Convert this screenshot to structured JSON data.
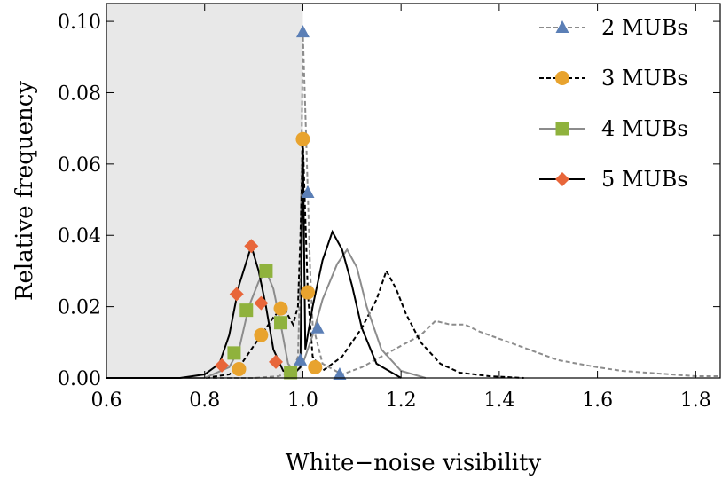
{
  "chart_data": {
    "type": "line",
    "title": "",
    "xlabel": "White−noise visibility",
    "ylabel": "Relative frequency",
    "xlim": [
      0.6,
      1.85
    ],
    "ylim": [
      0,
      0.105
    ],
    "x_ticks": [
      "0.6",
      "0.8",
      "1.0",
      "1.2",
      "1.4",
      "1.6",
      "1.8"
    ],
    "y_ticks": [
      "0.00",
      "0.02",
      "0.04",
      "0.06",
      "0.08",
      "0.10"
    ],
    "shaded_region": [
      0.6,
      1.0
    ],
    "grid": false,
    "legend_position": "top-right",
    "series": [
      {
        "name": "2 MUBs",
        "color": "#8c8c8c",
        "marker_color": "#5b7fb6",
        "marker": "triangle",
        "line_style": "dashed",
        "points": [
          [
            0.6,
            0
          ],
          [
            0.9,
            0
          ],
          [
            0.95,
            0.0005
          ],
          [
            0.98,
            0.002
          ],
          [
            0.99,
            0.006
          ],
          [
            0.995,
            0.03
          ],
          [
            1.0,
            0.097
          ],
          [
            1.005,
            0.075
          ],
          [
            1.01,
            0.052
          ],
          [
            1.015,
            0.03
          ],
          [
            1.02,
            0.015
          ],
          [
            1.04,
            0.004
          ],
          [
            1.08,
            0.001
          ],
          [
            1.12,
            0.003
          ],
          [
            1.16,
            0.006
          ],
          [
            1.2,
            0.009
          ],
          [
            1.24,
            0.012
          ],
          [
            1.27,
            0.016
          ],
          [
            1.3,
            0.015
          ],
          [
            1.33,
            0.015
          ],
          [
            1.36,
            0.013
          ],
          [
            1.4,
            0.011
          ],
          [
            1.44,
            0.009
          ],
          [
            1.48,
            0.007
          ],
          [
            1.52,
            0.005
          ],
          [
            1.56,
            0.004
          ],
          [
            1.6,
            0.003
          ],
          [
            1.65,
            0.002
          ],
          [
            1.7,
            0.0015
          ],
          [
            1.75,
            0.001
          ],
          [
            1.8,
            0.0005
          ],
          [
            1.85,
            0.0005
          ]
        ],
        "markers": [
          [
            1.0,
            0.097
          ],
          [
            1.01,
            0.052
          ],
          [
            1.03,
            0.014
          ],
          [
            0.995,
            0.005
          ],
          [
            1.075,
            0.001
          ]
        ]
      },
      {
        "name": "3 MUBs",
        "color": "#000000",
        "marker_color": "#e8a32e",
        "marker": "circle",
        "line_style": "dashed",
        "points": [
          [
            0.6,
            0
          ],
          [
            0.8,
            0
          ],
          [
            0.85,
            0.001
          ],
          [
            0.87,
            0.003
          ],
          [
            0.9,
            0.009
          ],
          [
            0.92,
            0.013
          ],
          [
            0.94,
            0.017
          ],
          [
            0.96,
            0.02
          ],
          [
            0.98,
            0.015
          ],
          [
            0.99,
            0.02
          ],
          [
            0.995,
            0.04
          ],
          [
            1.0,
            0.067
          ],
          [
            1.005,
            0.045
          ],
          [
            1.01,
            0.024
          ],
          [
            1.02,
            0.006
          ],
          [
            1.04,
            0.002
          ],
          [
            1.08,
            0.006
          ],
          [
            1.12,
            0.014
          ],
          [
            1.15,
            0.022
          ],
          [
            1.17,
            0.03
          ],
          [
            1.19,
            0.025
          ],
          [
            1.21,
            0.018
          ],
          [
            1.24,
            0.01
          ],
          [
            1.28,
            0.004
          ],
          [
            1.32,
            0.0015
          ],
          [
            1.38,
            0.0005
          ],
          [
            1.45,
            0
          ]
        ],
        "markers": [
          [
            1.0,
            0.067
          ],
          [
            1.01,
            0.024
          ],
          [
            0.955,
            0.0195
          ],
          [
            0.915,
            0.012
          ],
          [
            0.87,
            0.0025
          ],
          [
            1.025,
            0.003
          ]
        ]
      },
      {
        "name": "4 MUBs",
        "color": "#8c8c8c",
        "marker_color": "#8fb23d",
        "marker": "square",
        "line_style": "solid",
        "points": [
          [
            0.6,
            0
          ],
          [
            0.8,
            0
          ],
          [
            0.85,
            0.003
          ],
          [
            0.87,
            0.008
          ],
          [
            0.89,
            0.02
          ],
          [
            0.91,
            0.027
          ],
          [
            0.925,
            0.03
          ],
          [
            0.94,
            0.025
          ],
          [
            0.955,
            0.015
          ],
          [
            0.97,
            0.004
          ],
          [
            0.985,
            0.0015
          ],
          [
            1.0,
            0.004
          ],
          [
            1.02,
            0.012
          ],
          [
            1.04,
            0.022
          ],
          [
            1.07,
            0.032
          ],
          [
            1.09,
            0.036
          ],
          [
            1.11,
            0.031
          ],
          [
            1.13,
            0.02
          ],
          [
            1.16,
            0.008
          ],
          [
            1.2,
            0.002
          ],
          [
            1.25,
            0
          ]
        ],
        "markers": [
          [
            0.925,
            0.03
          ],
          [
            0.885,
            0.019
          ],
          [
            0.86,
            0.007
          ],
          [
            0.955,
            0.0155
          ],
          [
            0.975,
            0.0015
          ]
        ]
      },
      {
        "name": "5 MUBs",
        "color": "#000000",
        "marker_color": "#e8663a",
        "marker": "diamond",
        "line_style": "solid",
        "points": [
          [
            0.6,
            0
          ],
          [
            0.75,
            0
          ],
          [
            0.8,
            0.001
          ],
          [
            0.83,
            0.004
          ],
          [
            0.85,
            0.012
          ],
          [
            0.87,
            0.026
          ],
          [
            0.895,
            0.037
          ],
          [
            0.91,
            0.03
          ],
          [
            0.925,
            0.02
          ],
          [
            0.94,
            0.008
          ],
          [
            0.96,
            0.002
          ],
          [
            0.98,
            0.001
          ],
          [
            0.995,
            0.003
          ],
          [
            1.0,
            0.067
          ],
          [
            1.005,
            0.008
          ],
          [
            1.02,
            0.02
          ],
          [
            1.04,
            0.033
          ],
          [
            1.06,
            0.041
          ],
          [
            1.08,
            0.036
          ],
          [
            1.1,
            0.026
          ],
          [
            1.12,
            0.014
          ],
          [
            1.15,
            0.004
          ],
          [
            1.2,
            0
          ]
        ],
        "markers": [
          [
            0.895,
            0.037
          ],
          [
            0.865,
            0.0235
          ],
          [
            0.915,
            0.021
          ],
          [
            0.835,
            0.0035
          ],
          [
            0.945,
            0.0045
          ]
        ]
      }
    ]
  }
}
